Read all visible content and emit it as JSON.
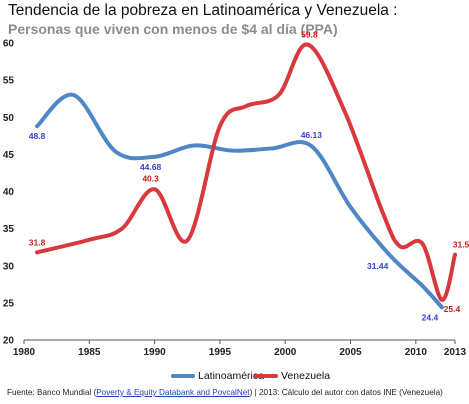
{
  "title": "Tendencia de la pobreza en Latinoamérica y Venezuela :",
  "subtitle": "Personas que viven con menos de $4 al día (PPA)",
  "source": {
    "prefix": "Fuente: Banco Mundial (",
    "link_text": "Poverty & Equity Databank and PovcalNet",
    "suffix": ") | 2013: Cálculo del autor con datos INE (Venezuela)"
  },
  "colors": {
    "latam": "#4f86c6",
    "venezuela": "#d9393d",
    "latam_label": "#3b3fd0",
    "venezuela_label": "#c81e1e"
  },
  "chart_data": {
    "type": "line",
    "title": "Tendencia de la pobreza en Latinoamérica y Venezuela :",
    "subtitle": "Personas que viven con menos de $4 al día (PPA)",
    "xlabel": "",
    "ylabel": "",
    "xlim": [
      1980,
      2013
    ],
    "ylim": [
      20,
      60
    ],
    "x_ticks": [
      1980,
      1985,
      1990,
      1995,
      2000,
      2005,
      2010,
      2013
    ],
    "y_ticks": [
      20,
      25,
      30,
      35,
      40,
      45,
      50,
      55,
      60
    ],
    "grid": false,
    "legend_position": "bottom",
    "series": [
      {
        "name": "Latinoamérica",
        "color": "#4f86c6",
        "points": [
          [
            1981,
            48.8
          ],
          [
            1983.8,
            53
          ],
          [
            1987,
            45.4
          ],
          [
            1990,
            44.68
          ],
          [
            1993,
            46.2
          ],
          [
            1996,
            45.5
          ],
          [
            1999,
            45.8
          ],
          [
            2002,
            46.13
          ],
          [
            2005,
            37.9
          ],
          [
            2008,
            31.44
          ],
          [
            2010.5,
            27.3
          ],
          [
            2012,
            24.4
          ]
        ],
        "labels": [
          {
            "x": 1981,
            "y": 48.8,
            "text": "48.8"
          },
          {
            "x": 1990,
            "y": 44.68,
            "text": "44.68"
          },
          {
            "x": 2002,
            "y": 46.13,
            "text": "46.13"
          },
          {
            "x": 2008,
            "y": 31.44,
            "text": "31.44"
          },
          {
            "x": 2012,
            "y": 24.4,
            "text": "24.4"
          }
        ]
      },
      {
        "name": "Venezuela",
        "color": "#d9393d",
        "points": [
          [
            1981,
            31.8
          ],
          [
            1985,
            33.5
          ],
          [
            1987.5,
            35
          ],
          [
            1990,
            40.3
          ],
          [
            1992.5,
            33.4
          ],
          [
            1995,
            48.8
          ],
          [
            1997,
            51.5
          ],
          [
            1999.5,
            53
          ],
          [
            2001.7,
            59.8
          ],
          [
            2004.5,
            51
          ],
          [
            2007.5,
            37
          ],
          [
            2008.8,
            32.6
          ],
          [
            2010.5,
            33
          ],
          [
            2012,
            25.4
          ],
          [
            2013,
            31.5
          ]
        ],
        "labels": [
          {
            "x": 1981,
            "y": 31.8,
            "text": "31.8"
          },
          {
            "x": 1990,
            "y": 40.3,
            "text": "40.3"
          },
          {
            "x": 2001.7,
            "y": 59.8,
            "text": "59.8"
          },
          {
            "x": 2012,
            "y": 25.4,
            "text": "25.4"
          },
          {
            "x": 2013,
            "y": 31.5,
            "text": "31.5"
          }
        ]
      }
    ]
  }
}
